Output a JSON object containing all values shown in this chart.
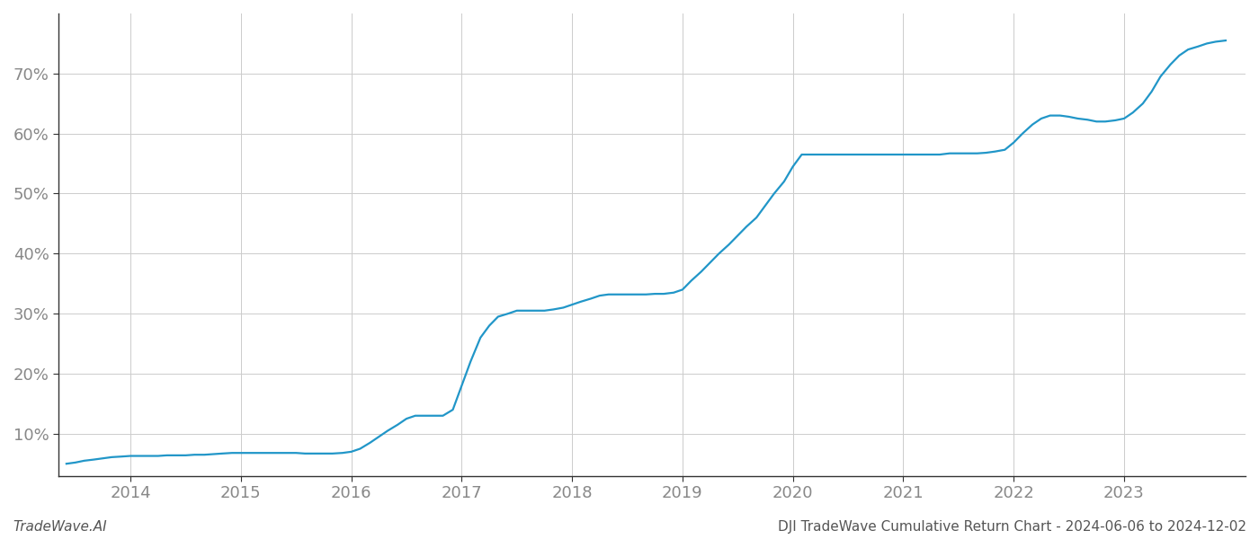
{
  "title": "DJI TradeWave Cumulative Return Chart - 2024-06-06 to 2024-12-02",
  "watermark": "TradeWave.AI",
  "line_color": "#2196C8",
  "background_color": "#ffffff",
  "grid_color": "#cccccc",
  "x_values": [
    2013.42,
    2013.5,
    2013.58,
    2013.67,
    2013.75,
    2013.83,
    2013.92,
    2014.0,
    2014.08,
    2014.17,
    2014.25,
    2014.33,
    2014.42,
    2014.5,
    2014.58,
    2014.67,
    2014.75,
    2014.83,
    2014.92,
    2015.0,
    2015.08,
    2015.17,
    2015.25,
    2015.33,
    2015.42,
    2015.5,
    2015.58,
    2015.67,
    2015.75,
    2015.83,
    2015.92,
    2016.0,
    2016.08,
    2016.17,
    2016.25,
    2016.33,
    2016.42,
    2016.5,
    2016.58,
    2016.67,
    2016.75,
    2016.83,
    2016.92,
    2017.0,
    2017.08,
    2017.17,
    2017.25,
    2017.33,
    2017.42,
    2017.5,
    2017.58,
    2017.67,
    2017.75,
    2017.83,
    2017.92,
    2018.0,
    2018.08,
    2018.17,
    2018.25,
    2018.33,
    2018.42,
    2018.5,
    2018.58,
    2018.67,
    2018.75,
    2018.83,
    2018.92,
    2019.0,
    2019.08,
    2019.17,
    2019.25,
    2019.33,
    2019.42,
    2019.5,
    2019.58,
    2019.67,
    2019.75,
    2019.83,
    2019.92,
    2020.0,
    2020.08,
    2020.17,
    2020.25,
    2020.33,
    2020.42,
    2020.5,
    2020.58,
    2020.67,
    2020.75,
    2020.83,
    2020.92,
    2021.0,
    2021.08,
    2021.17,
    2021.25,
    2021.33,
    2021.42,
    2021.5,
    2021.58,
    2021.67,
    2021.75,
    2021.83,
    2021.92,
    2022.0,
    2022.08,
    2022.17,
    2022.25,
    2022.33,
    2022.42,
    2022.5,
    2022.58,
    2022.67,
    2022.75,
    2022.83,
    2022.92,
    2023.0,
    2023.08,
    2023.17,
    2023.25,
    2023.33,
    2023.42,
    2023.5,
    2023.58,
    2023.67,
    2023.75,
    2023.83,
    2023.92
  ],
  "y_values": [
    5.0,
    5.2,
    5.5,
    5.7,
    5.9,
    6.1,
    6.2,
    6.3,
    6.3,
    6.3,
    6.3,
    6.4,
    6.4,
    6.4,
    6.5,
    6.5,
    6.6,
    6.7,
    6.8,
    6.8,
    6.8,
    6.8,
    6.8,
    6.8,
    6.8,
    6.8,
    6.7,
    6.7,
    6.7,
    6.7,
    6.8,
    7.0,
    7.5,
    8.5,
    9.5,
    10.5,
    11.5,
    12.5,
    13.0,
    13.0,
    13.0,
    13.0,
    14.0,
    18.0,
    22.0,
    26.0,
    28.0,
    29.5,
    30.0,
    30.5,
    30.5,
    30.5,
    30.5,
    30.7,
    31.0,
    31.5,
    32.0,
    32.5,
    33.0,
    33.2,
    33.2,
    33.2,
    33.2,
    33.2,
    33.3,
    33.3,
    33.5,
    34.0,
    35.5,
    37.0,
    38.5,
    40.0,
    41.5,
    43.0,
    44.5,
    46.0,
    48.0,
    50.0,
    52.0,
    54.5,
    56.5,
    56.5,
    56.5,
    56.5,
    56.5,
    56.5,
    56.5,
    56.5,
    56.5,
    56.5,
    56.5,
    56.5,
    56.5,
    56.5,
    56.5,
    56.5,
    56.7,
    56.7,
    56.7,
    56.7,
    56.8,
    57.0,
    57.3,
    58.5,
    60.0,
    61.5,
    62.5,
    63.0,
    63.0,
    62.8,
    62.5,
    62.3,
    62.0,
    62.0,
    62.2,
    62.5,
    63.5,
    65.0,
    67.0,
    69.5,
    71.5,
    73.0,
    74.0,
    74.5,
    75.0,
    75.3,
    75.5
  ],
  "xlim": [
    2013.35,
    2024.1
  ],
  "ylim_min": 3,
  "ylim_max": 80,
  "yticks": [
    10,
    20,
    30,
    40,
    50,
    60,
    70
  ],
  "xticks": [
    2014,
    2015,
    2016,
    2017,
    2018,
    2019,
    2020,
    2021,
    2022,
    2023
  ],
  "tick_label_color": "#888888",
  "tick_label_fontsize": 13,
  "title_fontsize": 11,
  "watermark_fontsize": 11,
  "line_width": 1.6
}
